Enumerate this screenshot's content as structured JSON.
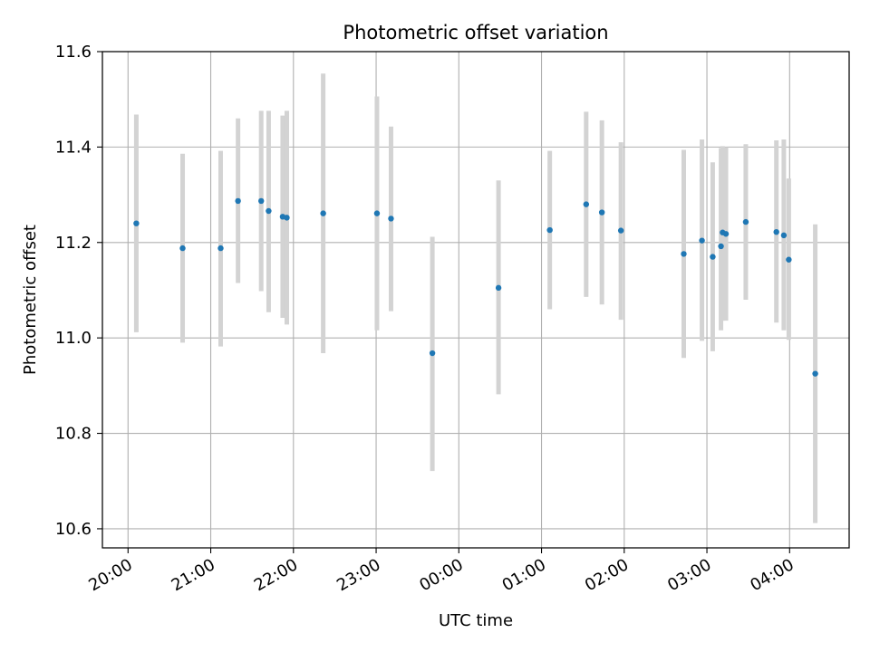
{
  "chart_data": {
    "type": "scatter",
    "title": "Photometric offset variation",
    "xlabel": "UTC time",
    "ylabel": "Photometric offset",
    "x_tick_labels": [
      "20:00",
      "21:00",
      "22:00",
      "23:00",
      "00:00",
      "01:00",
      "02:00",
      "03:00",
      "04:00"
    ],
    "x_tick_hours": [
      20,
      21,
      22,
      23,
      24,
      25,
      26,
      27,
      28
    ],
    "xlim_hours": [
      19.69,
      28.72
    ],
    "ylim": [
      10.56,
      11.6
    ],
    "y_ticks": [
      10.6,
      10.8,
      11.0,
      11.2,
      11.4,
      11.6
    ],
    "y_tick_labels": [
      "10.6",
      "10.8",
      "11.0",
      "11.2",
      "11.4",
      "11.6"
    ],
    "grid": true,
    "point_color": "#1f77b4",
    "errorbar_color": "#d3d3d3",
    "points": [
      {
        "t": 20.1,
        "y": 11.24,
        "lo": 11.012,
        "hi": 11.468
      },
      {
        "t": 20.66,
        "y": 11.188,
        "lo": 10.99,
        "hi": 11.386
      },
      {
        "t": 21.12,
        "y": 11.188,
        "lo": 10.982,
        "hi": 11.392
      },
      {
        "t": 21.33,
        "y": 11.287,
        "lo": 11.115,
        "hi": 11.46
      },
      {
        "t": 21.61,
        "y": 11.287,
        "lo": 11.098,
        "hi": 11.476
      },
      {
        "t": 21.7,
        "y": 11.266,
        "lo": 11.054,
        "hi": 11.476
      },
      {
        "t": 21.87,
        "y": 11.254,
        "lo": 11.042,
        "hi": 11.466
      },
      {
        "t": 21.92,
        "y": 11.252,
        "lo": 11.028,
        "hi": 11.476
      },
      {
        "t": 22.36,
        "y": 11.261,
        "lo": 10.968,
        "hi": 11.554
      },
      {
        "t": 23.01,
        "y": 11.261,
        "lo": 11.016,
        "hi": 11.506
      },
      {
        "t": 23.18,
        "y": 11.25,
        "lo": 11.056,
        "hi": 11.443
      },
      {
        "t": 23.68,
        "y": 10.968,
        "lo": 10.721,
        "hi": 11.212
      },
      {
        "t": 24.48,
        "y": 11.105,
        "lo": 10.882,
        "hi": 11.33
      },
      {
        "t": 25.1,
        "y": 11.226,
        "lo": 11.06,
        "hi": 11.392
      },
      {
        "t": 25.54,
        "y": 11.28,
        "lo": 11.086,
        "hi": 11.474
      },
      {
        "t": 25.73,
        "y": 11.263,
        "lo": 11.07,
        "hi": 11.456
      },
      {
        "t": 25.96,
        "y": 11.225,
        "lo": 11.038,
        "hi": 11.41
      },
      {
        "t": 26.72,
        "y": 11.176,
        "lo": 10.958,
        "hi": 11.394
      },
      {
        "t": 26.94,
        "y": 11.204,
        "lo": 10.994,
        "hi": 11.416
      },
      {
        "t": 27.07,
        "y": 11.17,
        "lo": 10.972,
        "hi": 11.368
      },
      {
        "t": 27.17,
        "y": 11.192,
        "lo": 11.016,
        "hi": 11.398
      },
      {
        "t": 27.19,
        "y": 11.221,
        "lo": 11.036,
        "hi": 11.402
      },
      {
        "t": 27.23,
        "y": 11.218,
        "lo": 11.036,
        "hi": 11.4
      },
      {
        "t": 27.47,
        "y": 11.243,
        "lo": 11.08,
        "hi": 11.406
      },
      {
        "t": 27.84,
        "y": 11.222,
        "lo": 11.032,
        "hi": 11.414
      },
      {
        "t": 27.93,
        "y": 11.215,
        "lo": 11.016,
        "hi": 11.416
      },
      {
        "t": 27.99,
        "y": 11.164,
        "lo": 10.996,
        "hi": 11.334
      },
      {
        "t": 28.31,
        "y": 10.925,
        "lo": 10.612,
        "hi": 11.238
      }
    ]
  }
}
